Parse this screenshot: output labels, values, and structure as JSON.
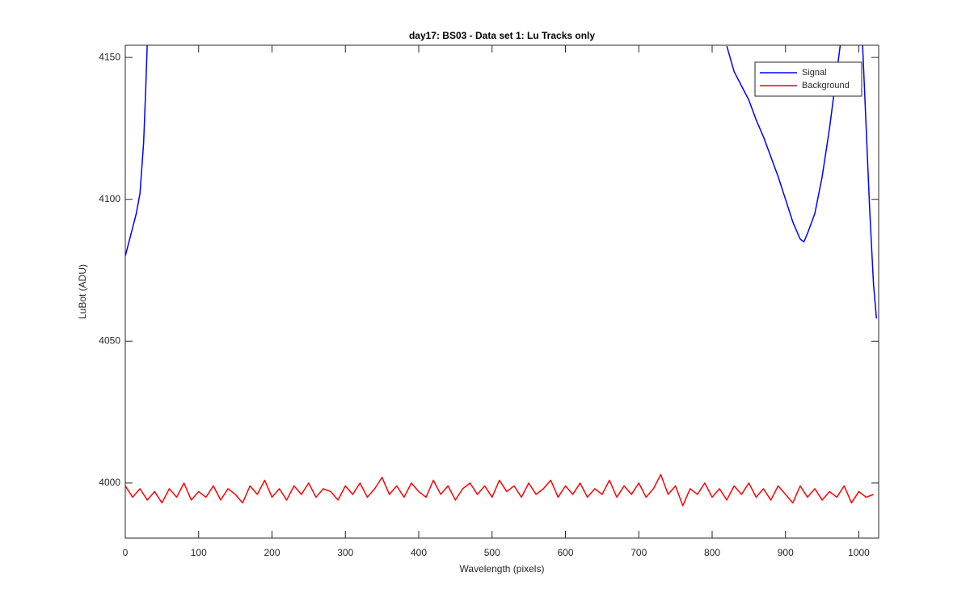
{
  "chart_data": {
    "type": "line",
    "title": "day17: BS03 - Data set 1: Lu Tracks only",
    "x_label": "Wavelength (pixels)",
    "y_label": "LuBot (ADU)",
    "xlim": [
      0,
      1027
    ],
    "ylim": [
      3980.6,
      4154.3
    ],
    "xticks": [
      0,
      100,
      200,
      300,
      400,
      500,
      600,
      700,
      800,
      900,
      1000
    ],
    "yticks": [
      4000,
      4050,
      4100,
      4150
    ],
    "legend": "top-right",
    "series": [
      {
        "name": "Signal",
        "color": "#0000ff",
        "x": [
          0,
          5,
          10,
          15,
          20,
          25,
          28,
          30,
          500,
          820,
          830,
          840,
          850,
          860,
          870,
          880,
          890,
          900,
          910,
          920,
          925,
          930,
          940,
          950,
          960,
          970,
          975,
          990,
          1005,
          1010,
          1015,
          1020,
          1024
        ],
        "values": [
          4080,
          4085,
          4090,
          4095,
          4102,
          4120,
          4140,
          4155,
          null,
          4154,
          4145,
          4140,
          4135,
          4128,
          4122,
          4115,
          4108,
          4100,
          4092,
          4086,
          4085,
          4088,
          4095,
          4108,
          4125,
          4145,
          4155,
          null,
          4155,
          4125,
          4095,
          4070,
          4058
        ]
      },
      {
        "name": "Background",
        "color": "#ff0000",
        "x": [
          0,
          10,
          20,
          30,
          40,
          50,
          60,
          70,
          80,
          90,
          100,
          110,
          120,
          130,
          140,
          150,
          160,
          170,
          180,
          190,
          200,
          210,
          220,
          230,
          240,
          250,
          260,
          270,
          280,
          290,
          300,
          310,
          320,
          330,
          340,
          350,
          360,
          370,
          380,
          390,
          400,
          410,
          420,
          430,
          440,
          450,
          460,
          470,
          480,
          490,
          500,
          510,
          520,
          530,
          540,
          550,
          560,
          570,
          580,
          590,
          600,
          610,
          620,
          630,
          640,
          650,
          660,
          670,
          680,
          690,
          700,
          710,
          720,
          730,
          740,
          750,
          760,
          770,
          780,
          790,
          800,
          810,
          820,
          830,
          840,
          850,
          860,
          870,
          880,
          890,
          900,
          910,
          920,
          930,
          940,
          950,
          960,
          970,
          980,
          990,
          1000,
          1010,
          1020
        ],
        "values": [
          3999,
          3995,
          3998,
          3994,
          3997,
          3993,
          3998,
          3995,
          4000,
          3994,
          3997,
          3995,
          3999,
          3994,
          3998,
          3996,
          3993,
          3999,
          3996,
          4001,
          3995,
          3998,
          3994,
          3999,
          3996,
          4000,
          3995,
          3998,
          3997,
          3994,
          3999,
          3996,
          4000,
          3995,
          3998,
          4002,
          3996,
          3999,
          3995,
          4000,
          3997,
          3995,
          4001,
          3996,
          3999,
          3994,
          3998,
          4000,
          3996,
          3999,
          3995,
          4001,
          3997,
          3999,
          3995,
          4000,
          3996,
          3998,
          4001,
          3995,
          3999,
          3996,
          4000,
          3995,
          3998,
          3996,
          4001,
          3995,
          3999,
          3996,
          4000,
          3995,
          3998,
          4003,
          3996,
          3999,
          3992,
          3998,
          3996,
          4000,
          3995,
          3998,
          3994,
          3999,
          3996,
          4000,
          3995,
          3998,
          3994,
          3999,
          3996,
          3993,
          3999,
          3995,
          3998,
          3994,
          3997,
          3995,
          3999,
          3993,
          3997,
          3995,
          3996
        ]
      }
    ]
  }
}
